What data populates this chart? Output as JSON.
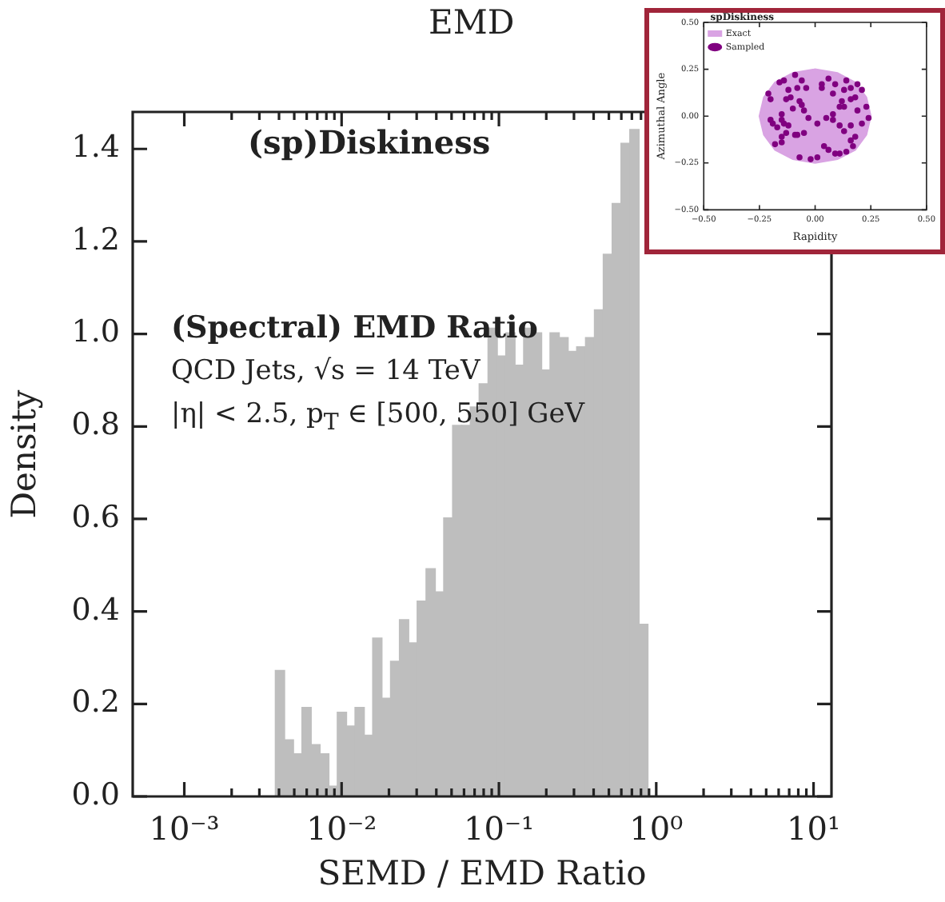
{
  "chart_data": [
    {
      "type": "histogram",
      "xlabel": "SEMD / EMD Ratio",
      "ylabel": "Density",
      "color": "#bebebe",
      "log": "x",
      "annotations": [
        "EMD",
        "(sp)Diskiness",
        "(Spectral) EMD Ratio",
        "QCD Jets, √s = 14 TeV",
        "|η| < 2.5, p$_{T}$ ∈ [500, 550] GeV"
      ],
      "bins": [
        0.0038,
        0.00433,
        0.00493,
        0.00561,
        0.00639,
        0.00727,
        0.00828,
        0.00943,
        0.0107,
        0.0122,
        0.0139,
        0.0158,
        0.018,
        0.0205,
        0.0234,
        0.0266,
        0.0303,
        0.0345,
        0.0393,
        0.0447,
        0.0509,
        0.058,
        0.066,
        0.0751,
        0.0855,
        0.0974,
        0.111,
        0.126,
        0.144,
        0.164,
        0.186,
        0.212,
        0.241,
        0.275,
        0.313,
        0.356,
        0.406,
        0.462,
        0.526,
        0.599,
        0.681,
        0.776,
        0.883
      ],
      "values": [
        0.27,
        0.12,
        0.09,
        0.19,
        0.11,
        0.09,
        0.02,
        0.18,
        0.15,
        0.19,
        0.13,
        0.34,
        0.21,
        0.29,
        0.38,
        0.33,
        0.42,
        0.49,
        0.44,
        0.6,
        0.8,
        0.8,
        0.84,
        0.89,
        1.01,
        0.95,
        1.0,
        0.93,
        1.01,
        1.0,
        0.92,
        1.0,
        0.99,
        0.96,
        0.97,
        0.99,
        1.05,
        1.17,
        1.28,
        1.41,
        1.44,
        0.37
      ],
      "xlim": [
        0.00047,
        13
      ],
      "xticks": [
        {
          "value": 0.001,
          "label": "10⁻³"
        },
        {
          "value": 0.002,
          "label": null
        },
        {
          "value": 0.003,
          "label": null
        },
        {
          "value": 0.004,
          "label": null
        },
        {
          "value": 0.005,
          "label": null
        },
        {
          "value": 0.006,
          "label": null
        },
        {
          "value": 0.007,
          "label": null
        },
        {
          "value": 0.008,
          "label": null
        },
        {
          "value": 0.009,
          "label": null
        },
        {
          "value": 0.01,
          "label": "10⁻²"
        },
        {
          "value": 0.02,
          "label": null
        },
        {
          "value": 0.03,
          "label": null
        },
        {
          "value": 0.04,
          "label": null
        },
        {
          "value": 0.05,
          "label": null
        },
        {
          "value": 0.06,
          "label": null
        },
        {
          "value": 0.07,
          "label": null
        },
        {
          "value": 0.08,
          "label": null
        },
        {
          "value": 0.09,
          "label": null
        },
        {
          "value": 0.1,
          "label": "10⁻¹"
        },
        {
          "value": 0.2,
          "label": null
        },
        {
          "value": 0.3,
          "label": null
        },
        {
          "value": 0.4,
          "label": null
        },
        {
          "value": 0.5,
          "label": null
        },
        {
          "value": 0.6,
          "label": null
        },
        {
          "value": 0.7,
          "label": null
        },
        {
          "value": 0.8,
          "label": null
        },
        {
          "value": 0.9,
          "label": null
        },
        {
          "value": 1,
          "label": "10⁰"
        },
        {
          "value": 2,
          "label": null
        },
        {
          "value": 3,
          "label": null
        },
        {
          "value": 4,
          "label": null
        },
        {
          "value": 5,
          "label": null
        },
        {
          "value": 6,
          "label": null
        },
        {
          "value": 7,
          "label": null
        },
        {
          "value": 8,
          "label": null
        },
        {
          "value": 9,
          "label": null
        },
        {
          "value": 10,
          "label": "10¹"
        }
      ],
      "ylim": [
        0,
        1.48
      ],
      "yticks": [
        {
          "value": 0,
          "label": "0.0"
        },
        {
          "value": 0.2,
          "label": "0.2"
        },
        {
          "value": 0.4,
          "label": "0.4"
        },
        {
          "value": 0.6,
          "label": "0.6"
        },
        {
          "value": 0.8,
          "label": "0.8"
        },
        {
          "value": 1,
          "label": "1.0"
        },
        {
          "value": 1.2,
          "label": "1.2"
        },
        {
          "value": 1.4,
          "label": "1.4"
        }
      ]
    },
    {
      "type": "scatter",
      "xlabel": "Rapidity",
      "ylabel": "Azimuthal Angle",
      "legend": "top left",
      "legend_title": "spDiskiness",
      "series": [
        {
          "name": "Exact",
          "type": "area",
          "color": "#d9a3e3",
          "x": [
            0.25,
            0.23,
            0.18,
            0.1,
            0,
            -0.1,
            -0.18,
            -0.23,
            -0.25,
            -0.23,
            -0.18,
            -0.1,
            0,
            0.1,
            0.18,
            0.23,
            0.25
          ],
          "values": [
            0,
            0.1,
            0.18,
            0.23,
            0.25,
            0.23,
            0.18,
            0.1,
            0,
            -0.1,
            -0.18,
            -0.23,
            -0.25,
            -0.23,
            -0.18,
            -0.1,
            0
          ]
        },
        {
          "name": "Sampled",
          "type": "scatter",
          "marker": "circle",
          "color": "#800080",
          "x": [
            -0.21,
            -0.2,
            -0.16,
            -0.14,
            -0.09,
            -0.06,
            -0.04,
            -0.08,
            -0.12,
            -0.11,
            -0.13,
            -0.07,
            -0.06,
            -0.05,
            -0.1,
            -0.15,
            -0.15,
            -0.2,
            -0.19,
            -0.17,
            -0.14,
            -0.12,
            -0.09,
            -0.13,
            -0.15,
            -0.18,
            -0.15,
            -0.08,
            -0.05,
            0.01,
            -0.03,
            0.05,
            0.08,
            0.08,
            0.11,
            0.12,
            0.08,
            0.03,
            0.03,
            0.06,
            0.09,
            0.14,
            0.13,
            0.16,
            0.19,
            0.21,
            0.18,
            0.16,
            0.13,
            0.19,
            0.23,
            0.24,
            0.21,
            0.16,
            0.11,
            0.13,
            0.18,
            0.16,
            0.17,
            0.14,
            0.09,
            0.11,
            0.06,
            0.04,
            0.01,
            -0.02,
            -0.07
          ],
          "values": [
            0.12,
            0.09,
            0.18,
            0.19,
            0.22,
            0.19,
            0.15,
            0.15,
            0.14,
            0.1,
            0.09,
            0.08,
            0.06,
            0.03,
            0.04,
            0.01,
            -0.02,
            -0.02,
            -0.04,
            -0.06,
            -0.04,
            -0.05,
            -0.1,
            -0.09,
            -0.11,
            -0.15,
            -0.14,
            -0.1,
            -0.09,
            -0.04,
            -0.01,
            -0.01,
            -0.02,
            0.01,
            0.05,
            0.08,
            0.12,
            0.15,
            0.17,
            0.2,
            0.17,
            0.19,
            0.14,
            0.15,
            0.17,
            0.14,
            0.1,
            0.09,
            0.05,
            0.03,
            0.05,
            -0.01,
            -0.04,
            -0.05,
            -0.05,
            -0.08,
            -0.11,
            -0.13,
            -0.16,
            -0.19,
            -0.2,
            -0.2,
            -0.18,
            -0.16,
            -0.22,
            -0.23,
            -0.22
          ]
        }
      ],
      "xlim": [
        -0.5,
        0.5
      ],
      "xticks": [
        {
          "value": -0.5,
          "label": "−0.50"
        },
        {
          "value": -0.25,
          "label": "−0.25"
        },
        {
          "value": 0,
          "label": "0.00"
        },
        {
          "value": 0.25,
          "label": "0.25"
        },
        {
          "value": 0.5,
          "label": "0.50"
        }
      ],
      "ylim": [
        -0.5,
        0.5
      ],
      "yticks": [
        {
          "value": -0.5,
          "label": "−0.50"
        },
        {
          "value": -0.25,
          "label": "−0.25"
        },
        {
          "value": 0,
          "label": "0.00"
        },
        {
          "value": 0.25,
          "label": "0.25"
        },
        {
          "value": 0.5,
          "label": "0.50"
        }
      ]
    }
  ]
}
